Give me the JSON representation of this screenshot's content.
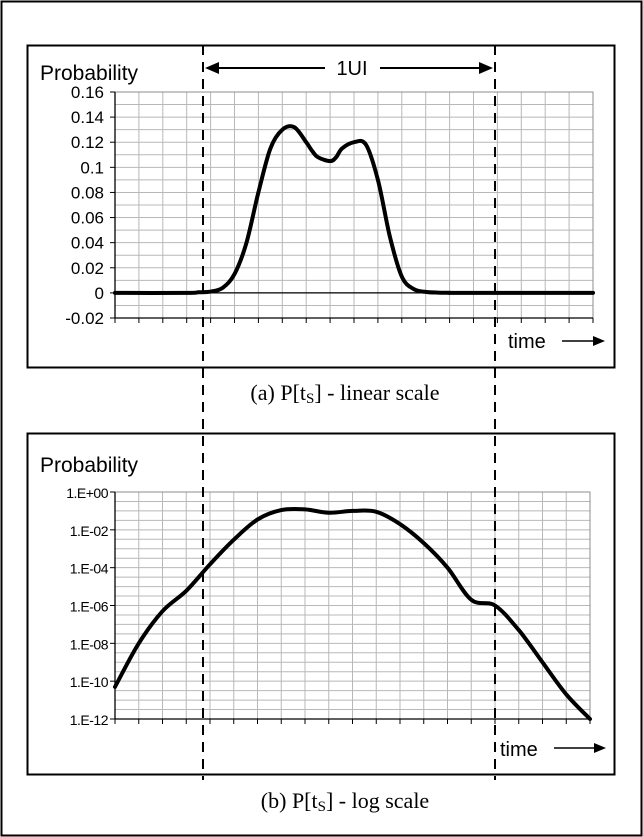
{
  "figure": {
    "caption_a_prefix": "(a) P[t",
    "caption_a_sub": "S",
    "caption_a_suffix": "] - linear scale",
    "caption_b_prefix": "(b) P[t",
    "caption_b_sub": "S",
    "caption_b_suffix": "] - log scale",
    "ui_label": "1UI",
    "colors": {
      "line": "#000000",
      "grid": "#b8b8b8",
      "background": "#ffffff"
    }
  },
  "chart_data": [
    {
      "type": "line",
      "ylabel": "Probability",
      "xlabel": "time",
      "ylim": [
        -0.02,
        0.16
      ],
      "yticks": [
        "0.16",
        "0.14",
        "0.12",
        "0.1",
        "0.08",
        "0.06",
        "0.04",
        "0.02",
        "0",
        "-0.02"
      ],
      "ytick_values": [
        0.16,
        0.14,
        0.12,
        0.1,
        0.08,
        0.06,
        0.04,
        0.02,
        0,
        -0.02
      ],
      "xlim": [
        0,
        40
      ],
      "grid": true,
      "series": [
        {
          "x": [
            0,
            6,
            7,
            8,
            9,
            10,
            11,
            12,
            13,
            14,
            15,
            16,
            16.5,
            17,
            18,
            18.5,
            19,
            20,
            21,
            22,
            23,
            24,
            25,
            26,
            27,
            28,
            29,
            40
          ],
          "y": [
            0,
            0,
            0.0005,
            0.001,
            0.004,
            0.015,
            0.04,
            0.08,
            0.115,
            0.13,
            0.132,
            0.12,
            0.113,
            0.108,
            0.105,
            0.108,
            0.115,
            0.12,
            0.118,
            0.09,
            0.045,
            0.013,
            0.003,
            0.0008,
            0.0002,
            0.0001,
            0,
            0
          ]
        }
      ]
    },
    {
      "type": "line",
      "ylabel": "Probability",
      "xlabel": "time",
      "yscale": "log",
      "ylim": [
        1e-12,
        1
      ],
      "yticks": [
        "1.E+00",
        "1.E-02",
        "1.E-04",
        "1.E-06",
        "1.E-08",
        "1.E-10",
        "1.E-12"
      ],
      "ytick_values": [
        1,
        0.01,
        0.0001,
        1e-06,
        1e-08,
        1e-10,
        1e-12
      ],
      "xlim": [
        0,
        40
      ],
      "grid": true,
      "series": [
        {
          "x": [
            0,
            2,
            4,
            6,
            8,
            10,
            12,
            14,
            16,
            18,
            20,
            22,
            24,
            26,
            28,
            30,
            32,
            34,
            36,
            38,
            40
          ],
          "y": [
            5e-11,
            1e-08,
            5e-07,
            6e-06,
            0.00015,
            0.003,
            0.035,
            0.11,
            0.12,
            0.08,
            0.1,
            0.09,
            0.02,
            0.002,
            0.0001,
            2e-06,
            1e-06,
            5e-08,
            1e-09,
            2e-11,
            1e-12
          ]
        }
      ]
    }
  ]
}
